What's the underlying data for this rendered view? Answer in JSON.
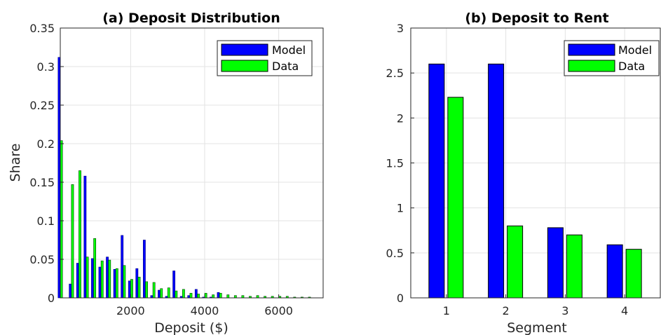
{
  "colors": {
    "model": "#0000ff",
    "data": "#00ff00",
    "model_dark": "#000080"
  },
  "chart_data": [
    {
      "type": "bar",
      "title": "(a) Deposit Distribution",
      "xlabel": "Deposit ($)",
      "ylabel": "Share",
      "xlim": [
        100,
        7200
      ],
      "ylim": [
        0,
        0.35
      ],
      "xticks": [
        2000,
        4000,
        6000
      ],
      "xtick_labels": [
        "2000",
        "4000",
        "6000"
      ],
      "yticks": [
        0,
        0.05,
        0.1,
        0.15,
        0.2,
        0.25,
        0.3,
        0.35
      ],
      "ytick_labels": [
        "0",
        "0.05",
        "0.1",
        "0.15",
        "0.2",
        "0.25",
        "0.3",
        "0.35"
      ],
      "grid": true,
      "legend_position": "top-right",
      "series": [
        {
          "name": "Model",
          "x": [
            100,
            400,
            600,
            800,
            1000,
            1200,
            1400,
            1600,
            1800,
            2000,
            2200,
            2400,
            2600,
            2800,
            3000,
            3200,
            3400,
            3600,
            3800,
            4000,
            4200,
            4400
          ],
          "values": [
            0.312,
            0.018,
            0.045,
            0.158,
            0.051,
            0.04,
            0.053,
            0.037,
            0.081,
            0.022,
            0.038,
            0.075,
            0.003,
            0.01,
            0.002,
            0.035,
            0.002,
            0.003,
            0.011,
            0.001,
            0.001,
            0.007
          ]
        },
        {
          "name": "Data",
          "x": [
            100,
            400,
            600,
            800,
            1000,
            1200,
            1400,
            1600,
            1800,
            2000,
            2200,
            2400,
            2600,
            2800,
            3000,
            3200,
            3400,
            3600,
            3800,
            4000,
            4200,
            4400,
            4600,
            4800,
            5000,
            5200,
            5400,
            5600,
            5800,
            6000,
            6200,
            6400,
            6600,
            6800
          ],
          "values": [
            0.204,
            0.147,
            0.165,
            0.053,
            0.077,
            0.048,
            0.049,
            0.038,
            0.042,
            0.024,
            0.027,
            0.021,
            0.02,
            0.012,
            0.013,
            0.009,
            0.011,
            0.006,
            0.005,
            0.006,
            0.004,
            0.006,
            0.004,
            0.003,
            0.003,
            0.002,
            0.003,
            0.002,
            0.002,
            0.002,
            0.002,
            0.001,
            0.001,
            0.001
          ]
        }
      ]
    },
    {
      "type": "bar",
      "title": "(b) Deposit to Rent",
      "xlabel": "Segment",
      "ylabel": "",
      "categories": [
        "1",
        "2",
        "3",
        "4"
      ],
      "ylim": [
        0,
        3
      ],
      "yticks": [
        0,
        0.5,
        1,
        1.5,
        2,
        2.5,
        3
      ],
      "ytick_labels": [
        "0",
        "0.5",
        "1",
        "1.5",
        "2",
        "2.5",
        "3"
      ],
      "grid": true,
      "legend_position": "top-right",
      "series": [
        {
          "name": "Model",
          "values": [
            2.6,
            2.6,
            0.78,
            0.59
          ]
        },
        {
          "name": "Data",
          "values": [
            2.23,
            0.8,
            0.7,
            0.54
          ]
        }
      ]
    }
  ]
}
